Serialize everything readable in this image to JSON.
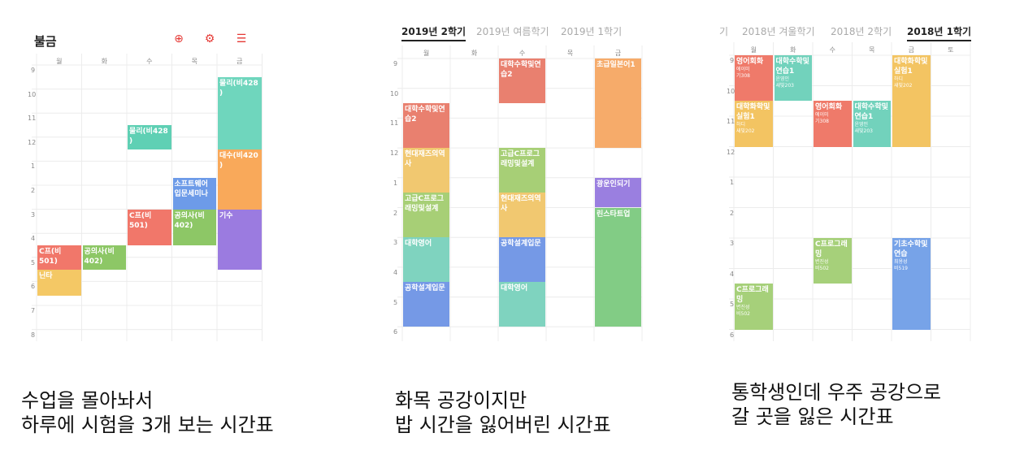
{
  "panel1": {
    "title": "불금",
    "days": [
      "월",
      "화",
      "수",
      "목",
      "금"
    ],
    "hours": [
      "9",
      "10",
      "11",
      "12",
      "1",
      "2",
      "3",
      "4",
      "5",
      "6",
      "7",
      "8"
    ],
    "icons": [
      "add-icon",
      "gear-icon",
      "list-icon"
    ],
    "blocks": [
      {
        "label": "물리(비428 )",
        "day": 2,
        "start": 11.5,
        "end": 12.5,
        "color": "#5fd0b4"
      },
      {
        "label": "물리(비428 )",
        "day": 4,
        "start": 9.5,
        "end": 12.5,
        "color": "#6fd6bd"
      },
      {
        "label": "대수(비420 )",
        "day": 4,
        "start": 12.5,
        "end": 15,
        "color": "#f9a95a"
      },
      {
        "label": "소프트웨어입문세미나",
        "day": 3,
        "start": 13.7,
        "end": 15,
        "color": "#6d9be8"
      },
      {
        "label": "C프(비501)",
        "day": 2,
        "start": 15,
        "end": 16.5,
        "color": "#f1776a"
      },
      {
        "label": "공의사(비402)",
        "day": 3,
        "start": 15,
        "end": 16.5,
        "color": "#8dc766"
      },
      {
        "label": "기수",
        "day": 4,
        "start": 15,
        "end": 17.5,
        "color": "#9b7be0"
      },
      {
        "label": "C프(비501)",
        "day": 0,
        "start": 16.5,
        "end": 17.5,
        "color": "#f1776a"
      },
      {
        "label": "공의사(비402)",
        "day": 1,
        "start": 16.5,
        "end": 17.5,
        "color": "#8dc766"
      },
      {
        "label": "닌타",
        "day": 0,
        "start": 17.5,
        "end": 18.6,
        "color": "#f4c865"
      }
    ]
  },
  "panel2": {
    "tabs": [
      {
        "label": "2019년 2학기",
        "active": true
      },
      {
        "label": "2019년 여름학기",
        "active": false
      },
      {
        "label": "2019년 1학기",
        "active": false
      }
    ],
    "days": [
      "월",
      "화",
      "수",
      "목",
      "금"
    ],
    "hours": [
      "9",
      "10",
      "11",
      "12",
      "1",
      "2",
      "3",
      "4",
      "5",
      "6"
    ],
    "blocks": [
      {
        "label": "대학수학및연습2",
        "day": 2,
        "start": 9,
        "end": 10.5,
        "color": "#e9806f"
      },
      {
        "label": "초급일본어1",
        "day": 4,
        "start": 9,
        "end": 12,
        "color": "#f6ab6a"
      },
      {
        "label": "대학수학및연습2",
        "day": 0,
        "start": 10.5,
        "end": 12,
        "color": "#e9806f"
      },
      {
        "label": "현대재즈의역사",
        "day": 0,
        "start": 12,
        "end": 13.5,
        "color": "#f1c870"
      },
      {
        "label": "고급C프로그래밍및설계",
        "day": 2,
        "start": 12,
        "end": 13.5,
        "color": "#a7cf76"
      },
      {
        "label": "고급C프로그래밍및설계",
        "day": 0,
        "start": 13.5,
        "end": 15,
        "color": "#a7cf76"
      },
      {
        "label": "현대재즈의역사",
        "day": 2,
        "start": 13.5,
        "end": 15,
        "color": "#f1c870"
      },
      {
        "label": "광운인되기",
        "day": 4,
        "start": 13,
        "end": 14,
        "color": "#9a7fe0"
      },
      {
        "label": "린스타트업",
        "day": 4,
        "start": 14,
        "end": 18,
        "color": "#82cc85"
      },
      {
        "label": "대학영어",
        "day": 0,
        "start": 15,
        "end": 16.5,
        "color": "#7fd3bf"
      },
      {
        "label": "공학설계입문",
        "day": 2,
        "start": 15,
        "end": 16.5,
        "color": "#7599e6"
      },
      {
        "label": "공학설계입문",
        "day": 0,
        "start": 16.5,
        "end": 18,
        "color": "#7599e6"
      },
      {
        "label": "대학영어",
        "day": 2,
        "start": 16.5,
        "end": 18,
        "color": "#7fd3bf"
      }
    ]
  },
  "panel3": {
    "tabs": [
      {
        "label": "기",
        "active": false
      },
      {
        "label": "2018년 겨울학기",
        "active": false
      },
      {
        "label": "2018년 2학기",
        "active": false
      },
      {
        "label": "2018년 1학기",
        "active": true
      }
    ],
    "days": [
      "월",
      "화",
      "수",
      "목",
      "금",
      "토"
    ],
    "hours": [
      "9",
      "10",
      "11",
      "12",
      "1",
      "2",
      "3",
      "4",
      "5",
      "6"
    ],
    "blocks": [
      {
        "label": "영어회화",
        "sub1": "에이미",
        "sub2": "기308",
        "day": 0,
        "start": 9,
        "end": 10.5,
        "color": "#ef7a6a"
      },
      {
        "label": "대학수학및연습1",
        "sub1": "윤영인",
        "sub2": "새빛203",
        "day": 1,
        "start": 9,
        "end": 10.5,
        "color": "#72d2bc"
      },
      {
        "label": "대학화학및실험1",
        "sub1": "하디",
        "sub2": "새빛202",
        "day": 4,
        "start": 9,
        "end": 12,
        "color": "#f3c462"
      },
      {
        "label": "대학화학및실험1",
        "sub1": "하디",
        "sub2": "새빛202",
        "day": 0,
        "start": 10.5,
        "end": 12,
        "color": "#f3c462"
      },
      {
        "label": "영어회화",
        "sub1": "에이미",
        "sub2": "기308",
        "day": 2,
        "start": 10.5,
        "end": 12,
        "color": "#ef7a6a"
      },
      {
        "label": "대학수학및연습1",
        "sub1": "윤영인",
        "sub2": "새빛203",
        "day": 3,
        "start": 10.5,
        "end": 12,
        "color": "#72d2bc"
      },
      {
        "label": "C프로그래밍",
        "sub1": "변진성",
        "sub2": "비502",
        "day": 2,
        "start": 15,
        "end": 16.5,
        "color": "#a6d07a"
      },
      {
        "label": "기초수학및연습",
        "sub1": "최용성",
        "sub2": "비519",
        "day": 4,
        "start": 15,
        "end": 18,
        "color": "#77a3e8"
      },
      {
        "label": "C프로그래밍",
        "sub1": "변진성",
        "sub2": "비502",
        "day": 0,
        "start": 16.5,
        "end": 18,
        "color": "#a6d07a"
      }
    ]
  },
  "captions": {
    "c1_line1": "수업을 몰아놔서",
    "c1_line2": "하루에 시험을 3개 보는 시간표",
    "c2_line1": "화목 공강이지만",
    "c2_line2": "밥 시간을 잃어버린 시간표",
    "c3_line1": "통학생인데 우주 공강으로",
    "c3_line2": "갈 곳을 잃은 시간표"
  }
}
